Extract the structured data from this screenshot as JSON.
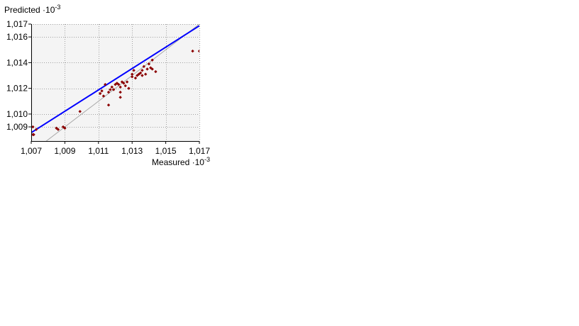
{
  "chart_data": {
    "type": "scatter",
    "title": "",
    "ylabel": "Predicted",
    "ylabel_exponent": "-3",
    "xlabel": "Measured",
    "xlabel_exponent": "-3",
    "scale_prefix": "·10",
    "xlim": [
      1.007,
      1.017
    ],
    "ylim": [
      1.0079,
      1.017
    ],
    "x_ticks": [
      1.007,
      1.009,
      1.011,
      1.013,
      1.015,
      1.017
    ],
    "x_tick_labels": [
      "1,007",
      "1,009",
      "1,011",
      "1,013",
      "1,015",
      "1,017"
    ],
    "y_ticks": [
      1.009,
      1.01,
      1.012,
      1.014,
      1.016,
      1.017
    ],
    "y_tick_labels": [
      "1,009",
      "1,010",
      "1,012",
      "1,014",
      "1,016",
      "1,017"
    ],
    "grid": true,
    "legend": "none",
    "points": [
      {
        "x": 1.0071,
        "y": 1.0084
      },
      {
        "x": 1.00715,
        "y": 1.0084
      },
      {
        "x": 1.0071,
        "y": 1.009
      },
      {
        "x": 1.0073,
        "y": 1.0088
      },
      {
        "x": 1.0085,
        "y": 1.0089
      },
      {
        "x": 1.0086,
        "y": 1.0088
      },
      {
        "x": 1.0089,
        "y": 1.009
      },
      {
        "x": 1.009,
        "y": 1.0089
      },
      {
        "x": 1.0099,
        "y": 1.0102
      },
      {
        "x": 1.0111,
        "y": 1.0116
      },
      {
        "x": 1.0112,
        "y": 1.0118
      },
      {
        "x": 1.0113,
        "y": 1.0114
      },
      {
        "x": 1.0114,
        "y": 1.0123
      },
      {
        "x": 1.0116,
        "y": 1.0107
      },
      {
        "x": 1.0116,
        "y": 1.0117
      },
      {
        "x": 1.0117,
        "y": 1.0119
      },
      {
        "x": 1.0118,
        "y": 1.0121
      },
      {
        "x": 1.0119,
        "y": 1.0119
      },
      {
        "x": 1.012,
        "y": 1.0123
      },
      {
        "x": 1.0121,
        "y": 1.0124
      },
      {
        "x": 1.0122,
        "y": 1.0123
      },
      {
        "x": 1.0123,
        "y": 1.0117
      },
      {
        "x": 1.0123,
        "y": 1.0113
      },
      {
        "x": 1.0123,
        "y": 1.0121
      },
      {
        "x": 1.0124,
        "y": 1.0125
      },
      {
        "x": 1.0125,
        "y": 1.0124
      },
      {
        "x": 1.0126,
        "y": 1.0122
      },
      {
        "x": 1.0127,
        "y": 1.0125
      },
      {
        "x": 1.0128,
        "y": 1.012
      },
      {
        "x": 1.013,
        "y": 1.0129
      },
      {
        "x": 1.013,
        "y": 1.0131
      },
      {
        "x": 1.0131,
        "y": 1.0134
      },
      {
        "x": 1.0132,
        "y": 1.0128
      },
      {
        "x": 1.0133,
        "y": 1.013
      },
      {
        "x": 1.0134,
        "y": 1.0131
      },
      {
        "x": 1.0135,
        "y": 1.0132
      },
      {
        "x": 1.0136,
        "y": 1.013
      },
      {
        "x": 1.0136,
        "y": 1.0134
      },
      {
        "x": 1.0137,
        "y": 1.0137
      },
      {
        "x": 1.0138,
        "y": 1.0131
      },
      {
        "x": 1.0139,
        "y": 1.0135
      },
      {
        "x": 1.014,
        "y": 1.0139
      },
      {
        "x": 1.0141,
        "y": 1.0136
      },
      {
        "x": 1.0142,
        "y": 1.0135
      },
      {
        "x": 1.0142,
        "y": 1.0142
      },
      {
        "x": 1.0144,
        "y": 1.0133
      },
      {
        "x": 1.0166,
        "y": 1.0149
      },
      {
        "x": 1.017,
        "y": 1.0149
      }
    ],
    "regression_line": {
      "x": [
        1.007,
        1.017
      ],
      "y": [
        1.00855,
        1.01687
      ]
    },
    "identity_line": {
      "x": [
        1.007,
        1.017
      ],
      "y": [
        1.007,
        1.017
      ]
    },
    "colors": {
      "plot_background": "#f4f4f4",
      "grid": "#a0a0a0",
      "points": "#8b0000",
      "regression": "#0000ff",
      "identity": "#a8a8a8",
      "axis": "#000000"
    }
  }
}
